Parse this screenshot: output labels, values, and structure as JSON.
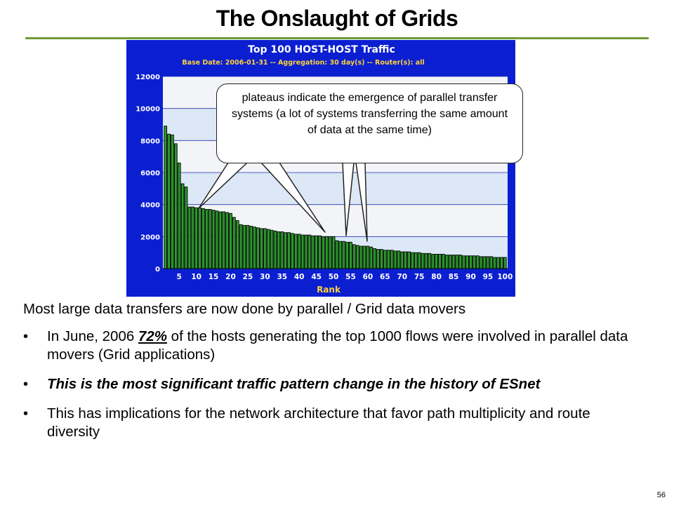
{
  "slide": {
    "title": "The Onslaught of Grids",
    "page_number": "56"
  },
  "callout": {
    "text": "plateaus indicate the emergence of parallel transfer systems (a lot of systems transferring the same amount of data at the same time)"
  },
  "body": {
    "intro": "Most large data transfers are now done by parallel / Grid data movers",
    "bullet1_pre": "In June, 2006 ",
    "bullet1_pct": "72%",
    "bullet1_post": " of the hosts generating the top 1000 flows were involved in parallel data movers (Grid applications)",
    "bullet2": "This is the most significant traffic pattern change in the history of ESnet",
    "bullet3": "This has implications for the network architecture that favor path multiplicity and route diversity"
  },
  "colors": {
    "chart_bg": "#0b1fd0",
    "plot_bg": "#dce8f6",
    "plot_band": "#f2f4f8",
    "bar_fill": "#2a9b2a",
    "bar_edge": "#000000",
    "title_text": "#ffffff",
    "subtitle_text": "#ffd23a",
    "title_rule": "#6e9c3a"
  },
  "chart_data": {
    "type": "bar",
    "title": "Top 100 HOST-HOST Traffic",
    "subtitle": "Base Date: 2006-01-31 -- Aggregation: 30 day(s) -- Router(s): all",
    "xlabel": "Rank",
    "ylabel": "",
    "ylim": [
      0,
      12000
    ],
    "yticks": [
      0,
      2000,
      4000,
      6000,
      8000,
      10000,
      12000
    ],
    "xticks": [
      5,
      10,
      15,
      20,
      25,
      30,
      35,
      40,
      45,
      50,
      55,
      60,
      65,
      70,
      75,
      80,
      85,
      90,
      95,
      100
    ],
    "x_start": 1,
    "values": [
      8900,
      8400,
      8350,
      7800,
      6600,
      5300,
      5100,
      3850,
      3850,
      3800,
      3800,
      3750,
      3700,
      3700,
      3650,
      3600,
      3550,
      3550,
      3500,
      3450,
      3200,
      3000,
      2750,
      2700,
      2700,
      2650,
      2600,
      2550,
      2500,
      2500,
      2450,
      2400,
      2350,
      2300,
      2300,
      2250,
      2250,
      2200,
      2150,
      2150,
      2100,
      2100,
      2100,
      2050,
      2050,
      2050,
      2000,
      2000,
      2000,
      2000,
      1750,
      1700,
      1700,
      1650,
      1650,
      1500,
      1450,
      1400,
      1400,
      1400,
      1350,
      1250,
      1200,
      1200,
      1150,
      1150,
      1150,
      1100,
      1100,
      1050,
      1050,
      1050,
      1000,
      1000,
      1000,
      950,
      950,
      950,
      900,
      900,
      900,
      900,
      850,
      850,
      850,
      850,
      850,
      800,
      800,
      800,
      800,
      800,
      750,
      750,
      750,
      750,
      700,
      700,
      700,
      700
    ],
    "grid": true
  }
}
